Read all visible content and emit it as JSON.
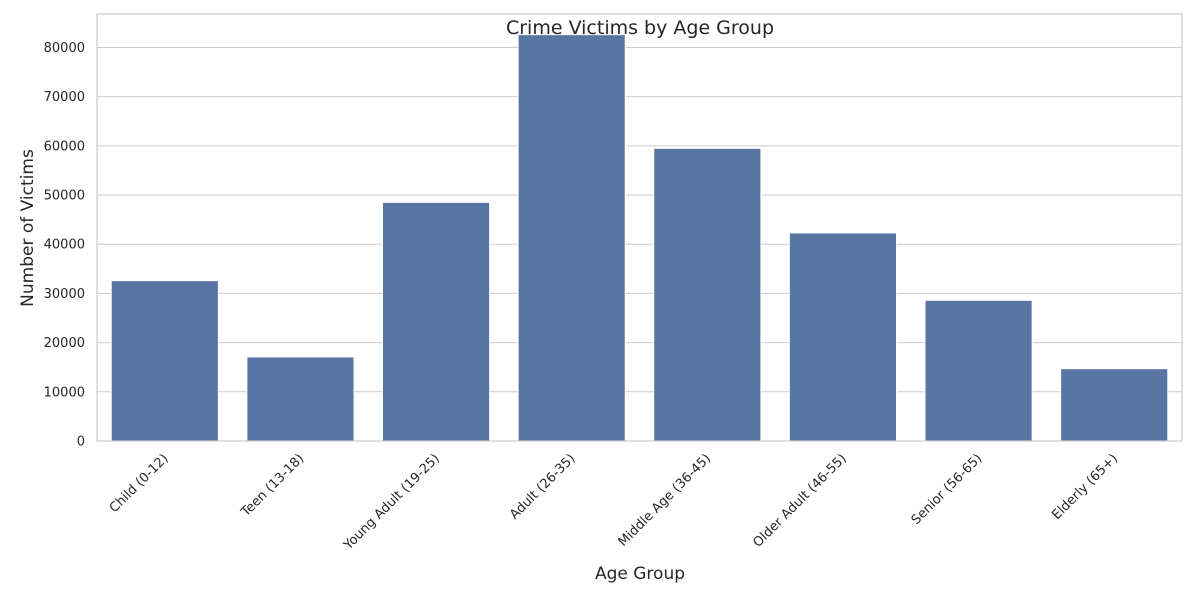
{
  "chart_data": {
    "type": "bar",
    "title": "Crime Victims by Age Group",
    "xlabel": "Age Group",
    "ylabel": "Number of Victims",
    "categories": [
      "Child (0-12)",
      "Teen (13-18)",
      "Young Adult (19-25)",
      "Adult (26-35)",
      "Middle Age (36-45)",
      "Older Adult (46-55)",
      "Senior (56-65)",
      "Elderly (65+)"
    ],
    "values": [
      32600,
      17100,
      48500,
      82600,
      59500,
      42300,
      28600,
      14700
    ],
    "yticks": [
      0,
      10000,
      20000,
      30000,
      40000,
      50000,
      60000,
      70000,
      80000
    ],
    "ylim": [
      0,
      86800
    ],
    "grid": true,
    "bar_color": "#5975a4",
    "grid_color": "#cccccc"
  }
}
